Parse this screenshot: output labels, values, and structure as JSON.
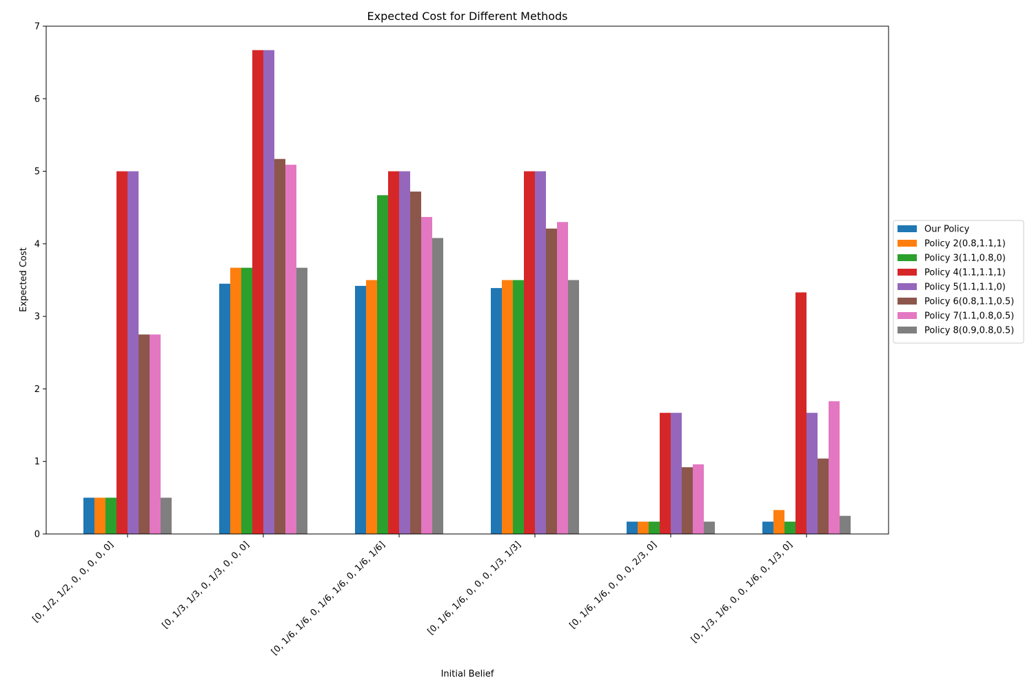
{
  "chart_data": {
    "type": "bar",
    "title": "Expected Cost for Different Methods",
    "xlabel": "Initial Belief",
    "ylabel": "Expected Cost",
    "ylim": [
      0,
      7
    ],
    "yticks": [
      0,
      1,
      2,
      3,
      4,
      5,
      6,
      7
    ],
    "grid": false,
    "legend_position": "right",
    "categories": [
      "[0, 1/2, 1/2, 0, 0, 0, 0, 0]",
      "[0, 1/3, 1/3, 0, 1/3, 0, 0, 0]",
      "[0, 1/6, 1/6, 0, 1/6, 1/6, 0, 1/6, 1/6]",
      "[0, 1/6, 1/6, 0, 0, 0, 1/3, 1/3]",
      "[0, 1/6, 1/6, 0, 0, 0, 2/3, 0]",
      "[0, 1/3, 1/6, 0, 0, 1/6, 0, 1/3, 0]"
    ],
    "series": [
      {
        "name": "Our Policy",
        "color": "#1f77b4",
        "values": [
          0.5,
          3.45,
          3.42,
          3.39,
          0.17,
          0.17
        ]
      },
      {
        "name": "Policy 2(0.8,1.1,1)",
        "color": "#ff7f0e",
        "values": [
          0.5,
          3.67,
          3.5,
          3.5,
          0.17,
          0.33
        ]
      },
      {
        "name": "Policy 3(1.1,0.8,0)",
        "color": "#2ca02c",
        "values": [
          0.5,
          3.67,
          4.67,
          3.5,
          0.17,
          0.17
        ]
      },
      {
        "name": "Policy 4(1.1,1.1,1)",
        "color": "#d62728",
        "values": [
          5.0,
          6.67,
          5.0,
          5.0,
          1.67,
          3.33
        ]
      },
      {
        "name": "Policy 5(1.1,1.1,0)",
        "color": "#9467bd",
        "values": [
          5.0,
          6.67,
          5.0,
          5.0,
          1.67,
          1.67
        ]
      },
      {
        "name": "Policy 6(0.8,1.1,0.5)",
        "color": "#8c564b",
        "values": [
          2.75,
          5.17,
          4.72,
          4.21,
          0.92,
          1.04
        ]
      },
      {
        "name": "Policy 7(1.1,0.8,0.5)",
        "color": "#e377c2",
        "values": [
          2.75,
          5.09,
          4.37,
          4.3,
          0.96,
          1.83
        ]
      },
      {
        "name": "Policy 8(0.9,0.8,0.5)",
        "color": "#7f7f7f",
        "values": [
          0.5,
          3.67,
          4.08,
          3.5,
          0.17,
          0.25
        ]
      }
    ]
  }
}
